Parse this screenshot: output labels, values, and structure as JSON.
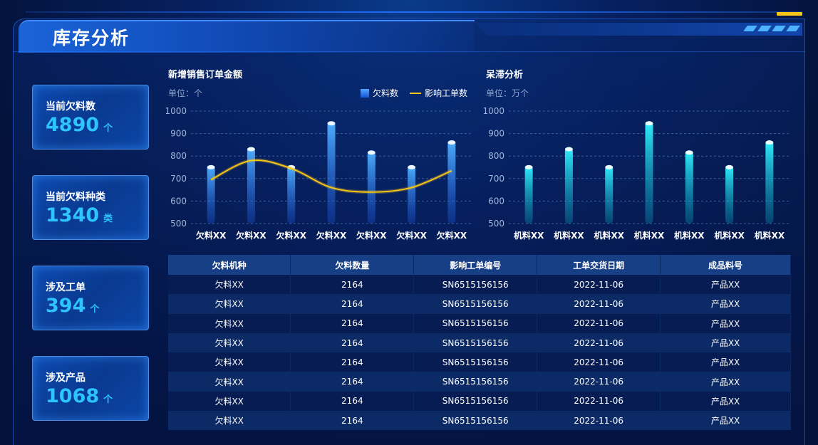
{
  "header": {
    "title": "库存分析"
  },
  "kpis": [
    {
      "label": "当前欠料数",
      "value": "4890",
      "unit": "个"
    },
    {
      "label": "当前欠料种类",
      "value": "1340",
      "unit": "类"
    },
    {
      "label": "涉及工单",
      "value": "394",
      "unit": "个"
    },
    {
      "label": "涉及产品",
      "value": "1068",
      "unit": "个"
    }
  ],
  "chart_data": [
    {
      "type": "bar",
      "title": "新增销售订单金额",
      "unit_label": "单位：个",
      "legend": [
        "欠料数",
        "影响工单数"
      ],
      "categories": [
        "欠料XX",
        "欠料XX",
        "欠料XX",
        "欠料XX",
        "欠料XX",
        "欠料XX",
        "欠料XX"
      ],
      "series": [
        {
          "name": "欠料数",
          "type": "bar",
          "values": [
            760,
            840,
            760,
            955,
            825,
            760,
            870
          ]
        },
        {
          "name": "影响工单数",
          "type": "line",
          "values": [
            695,
            780,
            745,
            660,
            640,
            660,
            735
          ]
        }
      ],
      "ylim": [
        500,
        1000
      ],
      "yticks": [
        "500",
        "600",
        "700",
        "800",
        "900",
        "1000"
      ],
      "grid": true,
      "legend_position": "top-right"
    },
    {
      "type": "bar",
      "title": "呆滞分析",
      "unit_label": "单位：万个",
      "categories": [
        "机料XX",
        "机料XX",
        "机料XX",
        "机料XX",
        "机料XX",
        "机料XX",
        "机料XX"
      ],
      "series": [
        {
          "values": [
            760,
            840,
            760,
            955,
            825,
            760,
            870
          ]
        }
      ],
      "ylim": [
        500,
        1000
      ],
      "yticks": [
        "500",
        "600",
        "700",
        "800",
        "900",
        "1000"
      ],
      "grid": true
    }
  ],
  "table": {
    "columns": [
      "欠料机种",
      "欠料数量",
      "影响工单编号",
      "工单交货日期",
      "成品料号"
    ],
    "rows": [
      [
        "欠料XX",
        "2164",
        "SN6515156156",
        "2022-11-06",
        "产品XX"
      ],
      [
        "欠料XX",
        "2164",
        "SN6515156156",
        "2022-11-06",
        "产品XX"
      ],
      [
        "欠料XX",
        "2164",
        "SN6515156156",
        "2022-11-06",
        "产品XX"
      ],
      [
        "欠料XX",
        "2164",
        "SN6515156156",
        "2022-11-06",
        "产品XX"
      ],
      [
        "欠料XX",
        "2164",
        "SN6515156156",
        "2022-11-06",
        "产品XX"
      ],
      [
        "欠料XX",
        "2164",
        "SN6515156156",
        "2022-11-06",
        "产品XX"
      ],
      [
        "欠料XX",
        "2164",
        "SN6515156156",
        "2022-11-06",
        "产品XX"
      ],
      [
        "欠料XX",
        "2164",
        "SN6515156156",
        "2022-11-06",
        "产品XX"
      ]
    ]
  },
  "colors": {
    "accent": "#2ec4ff",
    "line": "#f5c518",
    "bar_blue": "#3d8bff",
    "bar_cyan": "#1fe0f0"
  }
}
